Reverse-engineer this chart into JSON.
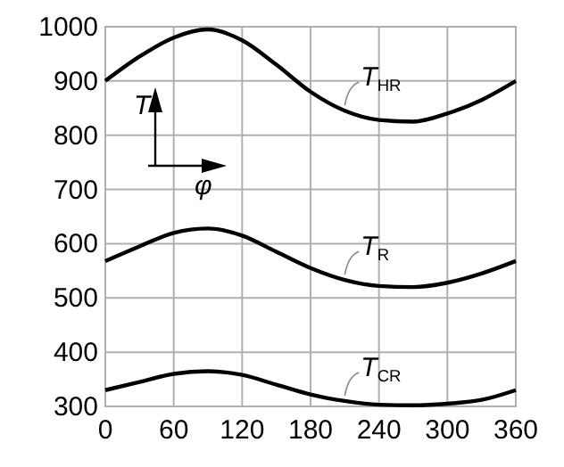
{
  "chart_data": {
    "type": "line",
    "x": [
      0,
      30,
      60,
      90,
      120,
      150,
      180,
      210,
      240,
      270,
      300,
      330,
      360
    ],
    "series": [
      {
        "name": "T$_{HR}$",
        "color": "#000000",
        "values": [
          900,
          945,
          980,
          995,
          975,
          930,
          880,
          845,
          828,
          825,
          840,
          865,
          900
        ]
      },
      {
        "name": "T$_{R}$",
        "color": "#000000",
        "values": [
          568,
          595,
          620,
          628,
          615,
          585,
          555,
          533,
          522,
          520,
          528,
          545,
          568
        ]
      },
      {
        "name": "T$_{CR}$",
        "color": "#000000",
        "values": [
          330,
          345,
          360,
          365,
          358,
          340,
          322,
          310,
          303,
          302,
          305,
          312,
          330
        ]
      }
    ],
    "xlim": [
      0,
      360
    ],
    "xticks": [
      0,
      60,
      120,
      180,
      240,
      300,
      360
    ],
    "ylim": [
      300,
      1000
    ],
    "yticks": [
      300,
      400,
      500,
      600,
      700,
      800,
      900,
      1000
    ],
    "grid": true,
    "marker": "none",
    "line_style": "solid",
    "annotations": [
      "T",
      "φ"
    ]
  }
}
